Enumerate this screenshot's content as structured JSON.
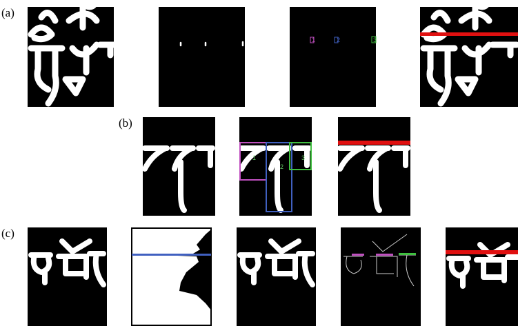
{
  "labels": {
    "a": "(a)",
    "b": "(b)",
    "c": "(c)"
  },
  "markers": {
    "a": [
      "1",
      "2",
      "3"
    ],
    "b": [
      "1",
      "2",
      "3"
    ]
  }
}
